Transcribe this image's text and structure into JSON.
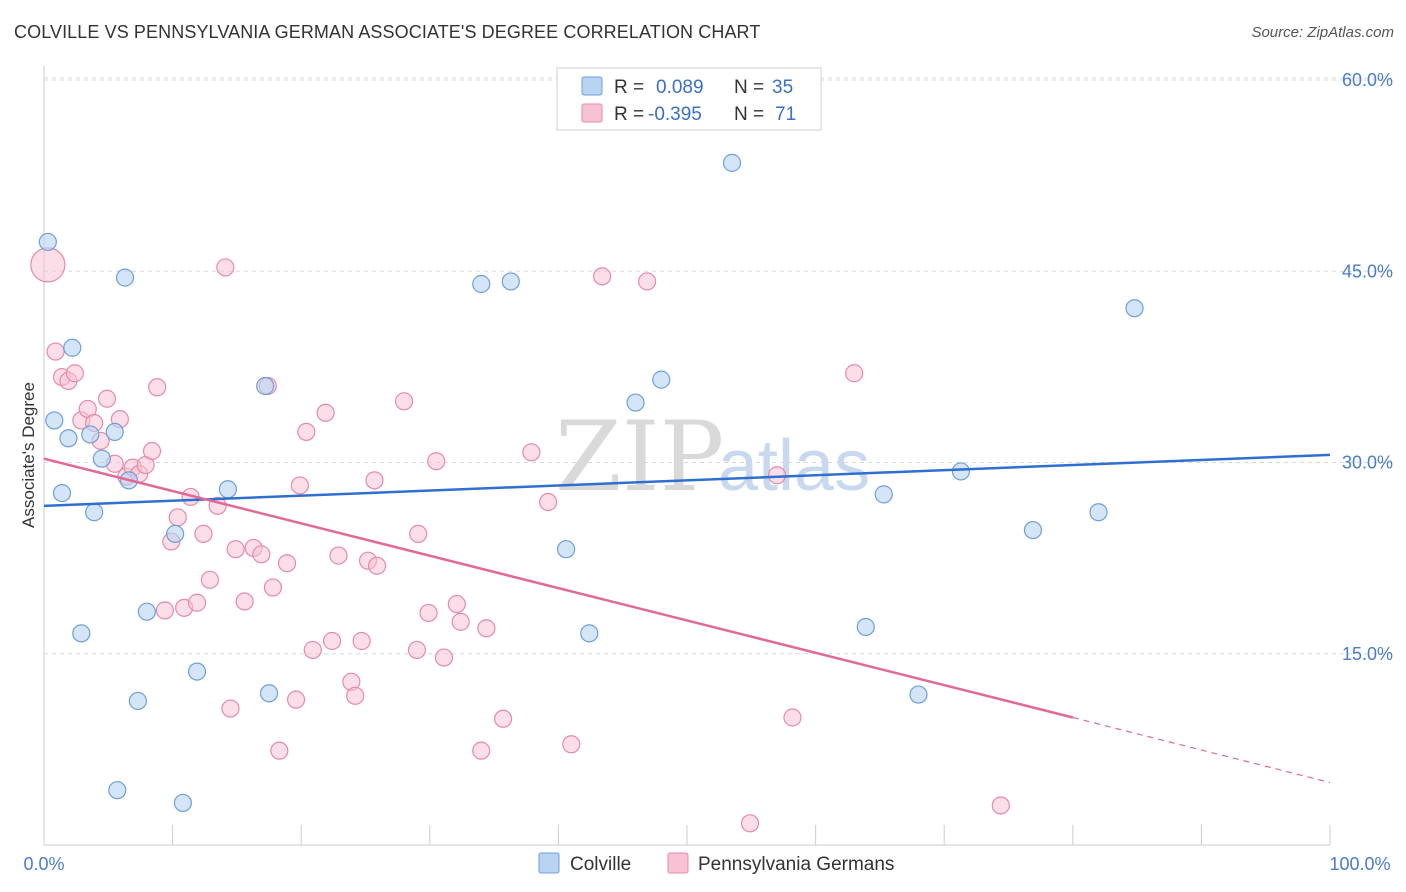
{
  "title": "COLVILLE VS PENNSYLVANIA GERMAN ASSOCIATE'S DEGREE CORRELATION CHART",
  "source": "Source: ZipAtlas.com",
  "watermark": {
    "part1": "ZIP",
    "part2": "atlas"
  },
  "legend": {
    "rows": [
      {
        "r_label": "R =",
        "r_value": "0.089",
        "n_label": "N =",
        "n_value": "35"
      },
      {
        "r_label": "R =",
        "r_value": "-0.395",
        "n_label": "N =",
        "n_value": "71"
      }
    ]
  },
  "bottom_legend": [
    "Colville",
    "Pennsylvania Germans"
  ],
  "colors": {
    "blue_fill": "#b9d3f3",
    "blue_stroke": "#6f9fd8",
    "blue_line": "#2f6fcf",
    "pink_fill": "#f7c3d4",
    "pink_stroke": "#e58ba9",
    "pink_line": "#e06a95",
    "grid": "#d8d8d8",
    "axis": "#cccccc"
  },
  "chart_data": {
    "type": "scatter",
    "title": "COLVILLE VS PENNSYLVANIA GERMAN ASSOCIATE'S DEGREE CORRELATION CHART",
    "xlabel": "",
    "ylabel": "Associate's Degree",
    "xlim": [
      0,
      100
    ],
    "ylim": [
      0,
      60
    ],
    "x_tick_labels": [
      "0.0%",
      "100.0%"
    ],
    "y_ticks": [
      15,
      30,
      45,
      60
    ],
    "y_tick_labels": [
      "15.0%",
      "30.0%",
      "45.0%",
      "60.0%"
    ],
    "grid": true,
    "series": [
      {
        "name": "Colville",
        "r": 0.089,
        "n": 35,
        "trend": {
          "x0": 0,
          "y0": 26.6,
          "x1": 100,
          "y1": 30.6
        },
        "points": [
          [
            0.3,
            47.3
          ],
          [
            0.8,
            33.3
          ],
          [
            1.4,
            27.6
          ],
          [
            1.9,
            31.9
          ],
          [
            2.2,
            39.0
          ],
          [
            2.9,
            16.6
          ],
          [
            3.6,
            32.2
          ],
          [
            3.9,
            26.1
          ],
          [
            4.5,
            30.3
          ],
          [
            5.5,
            32.4
          ],
          [
            5.7,
            4.3
          ],
          [
            6.3,
            44.5
          ],
          [
            6.6,
            28.6
          ],
          [
            7.3,
            11.3
          ],
          [
            8.0,
            18.3
          ],
          [
            10.2,
            24.4
          ],
          [
            10.8,
            3.3
          ],
          [
            11.9,
            13.6
          ],
          [
            14.3,
            27.9
          ],
          [
            17.2,
            36.0
          ],
          [
            17.5,
            11.9
          ],
          [
            34.0,
            44.0
          ],
          [
            36.3,
            44.2
          ],
          [
            40.6,
            23.2
          ],
          [
            42.4,
            16.6
          ],
          [
            46.0,
            34.7
          ],
          [
            48.0,
            36.5
          ],
          [
            53.5,
            53.5
          ],
          [
            63.9,
            17.1
          ],
          [
            65.3,
            27.5
          ],
          [
            68.0,
            11.8
          ],
          [
            71.3,
            29.3
          ],
          [
            76.9,
            24.7
          ],
          [
            82.0,
            26.1
          ],
          [
            84.8,
            42.1
          ]
        ]
      },
      {
        "name": "Pennsylvania Germans",
        "r": -0.395,
        "n": 71,
        "trend": {
          "x0": 0,
          "y0": 30.3,
          "x1": 80,
          "y1": 10.0
        },
        "trend_dashed": {
          "x0": 80,
          "y0": 10.0,
          "x1": 100,
          "y1": 4.9
        },
        "points": [
          [
            0.3,
            45.5
          ],
          [
            0.9,
            38.7
          ],
          [
            1.4,
            36.7
          ],
          [
            1.9,
            36.4
          ],
          [
            2.4,
            37.0
          ],
          [
            2.9,
            33.3
          ],
          [
            3.4,
            34.2
          ],
          [
            3.9,
            33.1
          ],
          [
            4.4,
            31.7
          ],
          [
            4.9,
            35.0
          ],
          [
            5.5,
            29.9
          ],
          [
            5.9,
            33.4
          ],
          [
            6.4,
            28.9
          ],
          [
            6.9,
            29.6
          ],
          [
            7.4,
            29.1
          ],
          [
            7.9,
            29.8
          ],
          [
            8.4,
            30.9
          ],
          [
            8.8,
            35.9
          ],
          [
            9.4,
            18.4
          ],
          [
            9.9,
            23.8
          ],
          [
            10.4,
            25.7
          ],
          [
            10.9,
            18.6
          ],
          [
            11.4,
            27.3
          ],
          [
            11.9,
            19.0
          ],
          [
            12.4,
            24.4
          ],
          [
            12.9,
            20.8
          ],
          [
            13.5,
            26.6
          ],
          [
            14.1,
            45.3
          ],
          [
            14.5,
            10.7
          ],
          [
            14.9,
            23.2
          ],
          [
            15.6,
            19.1
          ],
          [
            16.3,
            23.3
          ],
          [
            16.9,
            22.8
          ],
          [
            17.4,
            36.0
          ],
          [
            17.8,
            20.2
          ],
          [
            18.3,
            7.4
          ],
          [
            18.9,
            22.1
          ],
          [
            19.6,
            11.4
          ],
          [
            19.9,
            28.2
          ],
          [
            20.4,
            32.4
          ],
          [
            20.9,
            15.3
          ],
          [
            21.9,
            33.9
          ],
          [
            22.4,
            16.0
          ],
          [
            22.9,
            22.7
          ],
          [
            23.9,
            12.8
          ],
          [
            24.2,
            11.7
          ],
          [
            24.7,
            16.0
          ],
          [
            25.2,
            22.3
          ],
          [
            25.7,
            28.6
          ],
          [
            25.9,
            21.9
          ],
          [
            28.0,
            34.8
          ],
          [
            29.1,
            24.4
          ],
          [
            29.0,
            15.3
          ],
          [
            29.9,
            18.2
          ],
          [
            30.5,
            30.1
          ],
          [
            31.1,
            14.7
          ],
          [
            32.1,
            18.9
          ],
          [
            32.4,
            17.5
          ],
          [
            34.0,
            7.4
          ],
          [
            34.4,
            17.0
          ],
          [
            35.7,
            9.9
          ],
          [
            37.9,
            30.8
          ],
          [
            39.2,
            26.9
          ],
          [
            41.0,
            7.9
          ],
          [
            43.4,
            44.6
          ],
          [
            46.9,
            44.2
          ],
          [
            54.9,
            1.7
          ],
          [
            57.0,
            29.0
          ],
          [
            58.2,
            10.0
          ],
          [
            63.0,
            37.0
          ],
          [
            74.4,
            3.1
          ]
        ]
      }
    ]
  }
}
